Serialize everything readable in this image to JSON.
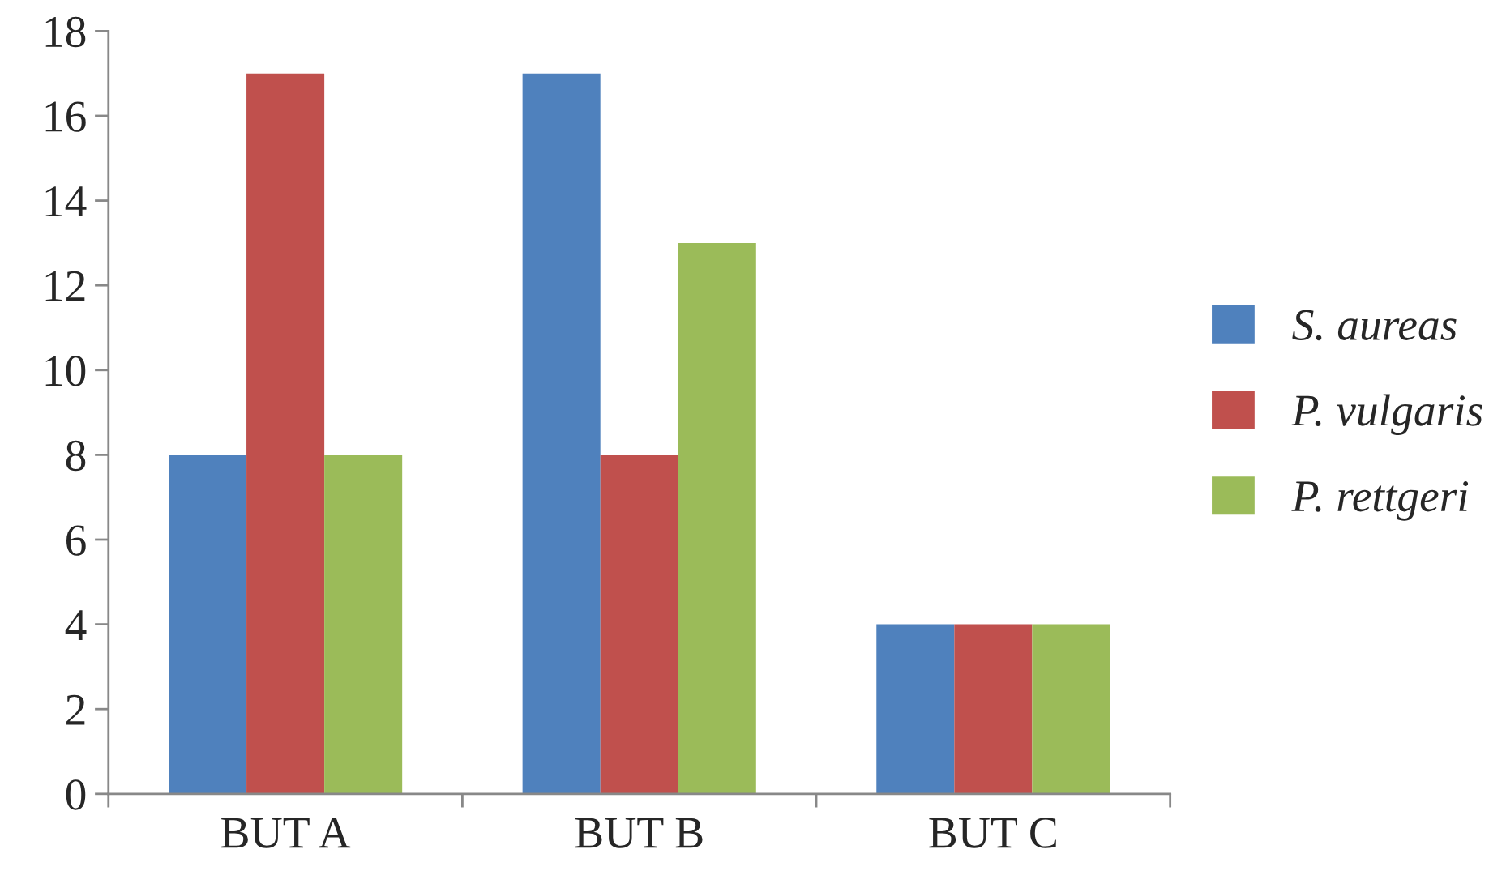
{
  "chart_data": {
    "type": "bar",
    "categories": [
      "BUT A",
      "BUT B",
      "BUT C"
    ],
    "series": [
      {
        "name": "S. aureas",
        "color": "#4f81bd",
        "values": [
          8,
          17,
          4
        ]
      },
      {
        "name": "P. vulgaris",
        "color": "#c0504d",
        "values": [
          17,
          8,
          4
        ]
      },
      {
        "name": "P. rettgeri",
        "color": "#9bbb59",
        "values": [
          8,
          13,
          4
        ]
      }
    ],
    "ylim": [
      0,
      18
    ],
    "yticks": [
      0,
      2,
      4,
      6,
      8,
      10,
      12,
      14,
      16,
      18
    ],
    "grid": false,
    "legend": "right"
  }
}
